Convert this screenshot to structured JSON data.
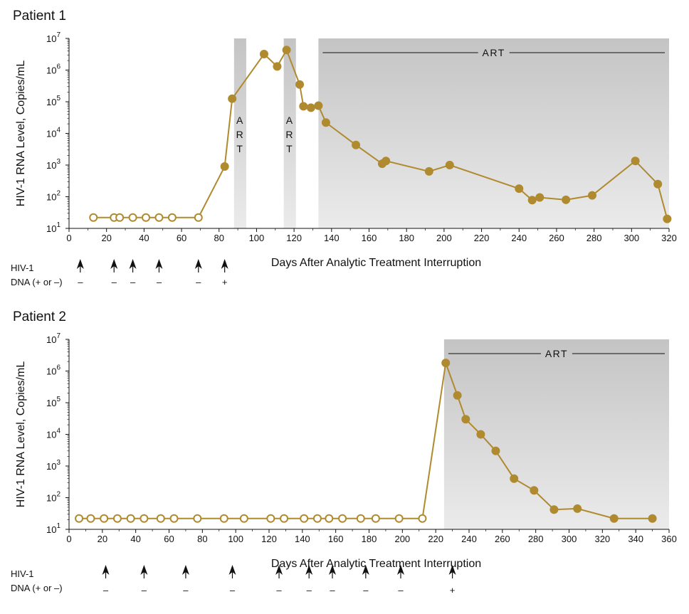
{
  "chart_data": [
    {
      "type": "line",
      "title": "Patient 1",
      "xlabel": "Days After Analytic Treatment Interruption",
      "ylabel": "HIV-1 RNA Level, Copies/mL",
      "y_scale": "log",
      "xlim": [
        0,
        320
      ],
      "ylim": [
        10,
        10000000
      ],
      "x_ticks": [
        0,
        20,
        40,
        60,
        80,
        100,
        120,
        140,
        160,
        180,
        200,
        220,
        240,
        260,
        280,
        300,
        320
      ],
      "y_ticks": [
        10,
        100,
        1000,
        10000,
        100000,
        1000000,
        10000000
      ],
      "y_tick_labels": [
        {
          "base": "10",
          "exp": "1"
        },
        {
          "base": "10",
          "exp": "2"
        },
        {
          "base": "10",
          "exp": "3"
        },
        {
          "base": "10",
          "exp": "4"
        },
        {
          "base": "10",
          "exp": "5"
        },
        {
          "base": "10",
          "exp": "6"
        },
        {
          "base": "10",
          "exp": "7"
        }
      ],
      "series": [
        {
          "color": "#b08a2e",
          "points": [
            {
              "x": 13,
              "y": 22,
              "filled": false
            },
            {
              "x": 24,
              "y": 22,
              "filled": false
            },
            {
              "x": 27,
              "y": 22,
              "filled": false
            },
            {
              "x": 34,
              "y": 22,
              "filled": false
            },
            {
              "x": 41,
              "y": 22,
              "filled": false
            },
            {
              "x": 48,
              "y": 22,
              "filled": false
            },
            {
              "x": 55,
              "y": 22,
              "filled": false
            },
            {
              "x": 69,
              "y": 22,
              "filled": false
            },
            {
              "x": 83,
              "y": 900,
              "filled": true
            },
            {
              "x": 87,
              "y": 125000,
              "filled": true
            },
            {
              "x": 104,
              "y": 3200000,
              "filled": true
            },
            {
              "x": 111,
              "y": 1300000,
              "filled": true
            },
            {
              "x": 116,
              "y": 4300000,
              "filled": true
            },
            {
              "x": 123,
              "y": 350000,
              "filled": true
            },
            {
              "x": 125,
              "y": 72000,
              "filled": true
            },
            {
              "x": 129,
              "y": 65000,
              "filled": true
            },
            {
              "x": 133,
              "y": 75000,
              "filled": true
            },
            {
              "x": 137,
              "y": 22000,
              "filled": true
            },
            {
              "x": 153,
              "y": 4300,
              "filled": true
            },
            {
              "x": 167,
              "y": 1100,
              "filled": true
            },
            {
              "x": 169,
              "y": 1350,
              "filled": true
            },
            {
              "x": 192,
              "y": 630,
              "filled": true
            },
            {
              "x": 203,
              "y": 1000,
              "filled": true
            },
            {
              "x": 240,
              "y": 180,
              "filled": true
            },
            {
              "x": 247,
              "y": 78,
              "filled": true
            },
            {
              "x": 251,
              "y": 95,
              "filled": true
            },
            {
              "x": 265,
              "y": 80,
              "filled": true
            },
            {
              "x": 279,
              "y": 110,
              "filled": true
            },
            {
              "x": 302,
              "y": 1350,
              "filled": true
            },
            {
              "x": 314,
              "y": 250,
              "filled": true
            },
            {
              "x": 319,
              "y": 20,
              "filled": true
            }
          ]
        }
      ],
      "art_periods": [
        {
          "start": 88,
          "end": 94.5,
          "label": "ART",
          "vertical": true
        },
        {
          "start": 114.5,
          "end": 121,
          "label": "ART",
          "vertical": true
        },
        {
          "start": 133,
          "end": 320,
          "label": "ART",
          "vertical": false
        }
      ],
      "dna": {
        "label_line1": "HIV-1",
        "label_line2": "DNA (+ or –)",
        "tests": [
          {
            "x": 6,
            "result": "–"
          },
          {
            "x": 24,
            "result": "–"
          },
          {
            "x": 34,
            "result": "–"
          },
          {
            "x": 48,
            "result": "–"
          },
          {
            "x": 69,
            "result": "–"
          },
          {
            "x": 83,
            "result": "+"
          }
        ]
      }
    },
    {
      "type": "line",
      "title": "Patient 2",
      "xlabel": "Days After Analytic Treatment Interruption",
      "ylabel": "HIV-1 RNA Level, Copies/mL",
      "y_scale": "log",
      "xlim": [
        0,
        360
      ],
      "ylim": [
        10,
        10000000
      ],
      "x_ticks": [
        0,
        20,
        40,
        60,
        80,
        100,
        120,
        140,
        160,
        180,
        200,
        220,
        240,
        260,
        280,
        300,
        320,
        340,
        360
      ],
      "y_ticks": [
        10,
        100,
        1000,
        10000,
        100000,
        1000000,
        10000000
      ],
      "y_tick_labels": [
        {
          "base": "10",
          "exp": "1"
        },
        {
          "base": "10",
          "exp": "2"
        },
        {
          "base": "10",
          "exp": "3"
        },
        {
          "base": "10",
          "exp": "4"
        },
        {
          "base": "10",
          "exp": "5"
        },
        {
          "base": "10",
          "exp": "6"
        },
        {
          "base": "10",
          "exp": "7"
        }
      ],
      "series": [
        {
          "color": "#b08a2e",
          "points": [
            {
              "x": 6,
              "y": 22,
              "filled": false
            },
            {
              "x": 13,
              "y": 22,
              "filled": false
            },
            {
              "x": 21,
              "y": 22,
              "filled": false
            },
            {
              "x": 29,
              "y": 22,
              "filled": false
            },
            {
              "x": 37,
              "y": 22,
              "filled": false
            },
            {
              "x": 45,
              "y": 22,
              "filled": false
            },
            {
              "x": 55,
              "y": 22,
              "filled": false
            },
            {
              "x": 63,
              "y": 22,
              "filled": false
            },
            {
              "x": 77,
              "y": 22,
              "filled": false
            },
            {
              "x": 93,
              "y": 22,
              "filled": false
            },
            {
              "x": 105,
              "y": 22,
              "filled": false
            },
            {
              "x": 121,
              "y": 22,
              "filled": false
            },
            {
              "x": 129,
              "y": 22,
              "filled": false
            },
            {
              "x": 141,
              "y": 22,
              "filled": false
            },
            {
              "x": 149,
              "y": 22,
              "filled": false
            },
            {
              "x": 156,
              "y": 22,
              "filled": false
            },
            {
              "x": 164,
              "y": 22,
              "filled": false
            },
            {
              "x": 175,
              "y": 22,
              "filled": false
            },
            {
              "x": 184,
              "y": 22,
              "filled": false
            },
            {
              "x": 198,
              "y": 22,
              "filled": false
            },
            {
              "x": 212,
              "y": 22,
              "filled": false
            },
            {
              "x": 226,
              "y": 1800000,
              "filled": true
            },
            {
              "x": 233,
              "y": 170000,
              "filled": true
            },
            {
              "x": 238,
              "y": 30000,
              "filled": true
            },
            {
              "x": 247,
              "y": 10000,
              "filled": true
            },
            {
              "x": 256,
              "y": 3000,
              "filled": true
            },
            {
              "x": 267,
              "y": 400,
              "filled": true
            },
            {
              "x": 279,
              "y": 170,
              "filled": true
            },
            {
              "x": 291,
              "y": 42,
              "filled": true
            },
            {
              "x": 305,
              "y": 45,
              "filled": true
            },
            {
              "x": 327,
              "y": 22,
              "filled": true
            },
            {
              "x": 350,
              "y": 22,
              "filled": true
            }
          ]
        }
      ],
      "art_periods": [
        {
          "start": 225,
          "end": 360,
          "label": "ART",
          "vertical": false
        }
      ],
      "dna": {
        "label_line1": "HIV-1",
        "label_line2": "DNA (+ or –)",
        "tests": [
          {
            "x": 22,
            "result": "–"
          },
          {
            "x": 45,
            "result": "–"
          },
          {
            "x": 70,
            "result": "–"
          },
          {
            "x": 98,
            "result": "–"
          },
          {
            "x": 126,
            "result": "–"
          },
          {
            "x": 144,
            "result": "–"
          },
          {
            "x": 158,
            "result": "–"
          },
          {
            "x": 178,
            "result": "–"
          },
          {
            "x": 199,
            "result": "–"
          },
          {
            "x": 230,
            "result": "+"
          }
        ]
      }
    }
  ]
}
